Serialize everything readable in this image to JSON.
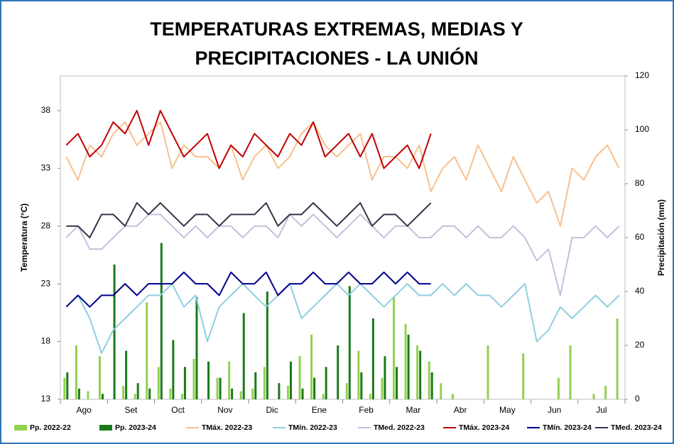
{
  "chart_data": {
    "type": "combo",
    "title": [
      "TEMPERATURAS EXTREMAS, MEDIAS Y",
      "PRECIPITACIONES  - LA UNIÓN"
    ],
    "y_label": "Temperatura (°C)",
    "y2_label": "Precipitación (mm)",
    "categories": [
      null,
      "Ago",
      null,
      null,
      null,
      "Set",
      null,
      null,
      null,
      "Oct",
      null,
      null,
      null,
      "Nov",
      null,
      null,
      null,
      "Dic",
      null,
      null,
      null,
      "Ene",
      null,
      null,
      null,
      "Feb",
      null,
      null,
      null,
      "Mar",
      null,
      null,
      null,
      "Abr",
      null,
      null,
      null,
      "May",
      null,
      null,
      null,
      "Jun",
      null,
      null,
      null,
      "Jul",
      null,
      null
    ],
    "ylim": [
      13,
      41
    ],
    "yticks": [
      13,
      18,
      23,
      28,
      33,
      38
    ],
    "y2lim": [
      0,
      120
    ],
    "y2ticks": [
      0,
      20,
      40,
      60,
      80,
      100,
      120
    ],
    "series": [
      {
        "name": "Pp. 2022-22",
        "kind": "bar",
        "axis": "y2",
        "color": "#92d050",
        "values": [
          8,
          20,
          3,
          16,
          0,
          5,
          2,
          36,
          12,
          4,
          2,
          15,
          0,
          8,
          14,
          3,
          4,
          12,
          0,
          5,
          16,
          24,
          2,
          0,
          6,
          18,
          2,
          8,
          38,
          28,
          20,
          14,
          6,
          2,
          0,
          0,
          20,
          0,
          0,
          17,
          0,
          0,
          8,
          20,
          0,
          2,
          5,
          30
        ]
      },
      {
        "name": "Pp. 2023-24",
        "kind": "bar",
        "axis": "y2",
        "color": "#1a7a1a",
        "values": [
          10,
          4,
          0,
          2,
          50,
          18,
          6,
          4,
          58,
          22,
          12,
          38,
          14,
          8,
          4,
          32,
          10,
          40,
          6,
          14,
          4,
          8,
          12,
          20,
          42,
          10,
          30,
          16,
          12,
          24,
          18,
          10,
          null,
          null,
          null,
          null,
          null,
          null,
          null,
          null,
          null,
          null,
          null,
          null,
          null,
          null,
          null,
          null
        ]
      },
      {
        "name": "TMáx. 2022-23",
        "kind": "line",
        "color": "#f8c08e",
        "values": [
          34,
          32,
          35,
          34,
          36,
          37,
          35,
          36,
          37,
          33,
          35,
          34,
          34,
          33,
          35,
          32,
          34,
          35,
          33,
          34,
          36,
          37,
          35,
          34,
          35,
          36,
          32,
          34,
          34,
          33,
          35,
          31,
          33,
          34,
          32,
          35,
          33,
          31,
          34,
          32,
          30,
          31,
          28,
          33,
          32,
          34,
          35,
          33
        ]
      },
      {
        "name": "TMín. 2022-23",
        "kind": "line",
        "color": "#8fcfe0",
        "values": [
          21,
          22,
          20,
          17,
          19,
          20,
          21,
          22,
          22,
          23,
          21,
          22,
          18,
          21,
          22,
          23,
          22,
          21,
          22,
          23,
          20,
          21,
          22,
          23,
          22,
          23,
          22,
          21,
          22,
          23,
          22,
          22,
          23,
          22,
          23,
          22,
          22,
          21,
          22,
          23,
          18,
          19,
          21,
          20,
          21,
          22,
          21,
          22
        ]
      },
      {
        "name": "TMed. 2022-23",
        "kind": "line",
        "color": "#cbbcdb",
        "values": [
          27,
          28,
          26,
          26,
          27,
          28,
          28,
          29,
          29,
          28,
          27,
          28,
          27,
          28,
          28,
          27,
          28,
          28,
          27,
          29,
          28,
          29,
          28,
          27,
          28,
          29,
          28,
          27,
          28,
          28,
          27,
          27,
          28,
          28,
          27,
          28,
          27,
          27,
          28,
          27,
          25,
          26,
          22,
          27,
          27,
          28,
          27,
          28
        ]
      },
      {
        "name": "TMáx. 2023-24",
        "kind": "line",
        "color": "#c00000",
        "values": [
          35,
          36,
          34,
          35,
          37,
          36,
          38,
          35,
          38,
          36,
          34,
          35,
          36,
          33,
          35,
          34,
          36,
          35,
          34,
          36,
          35,
          37,
          34,
          35,
          36,
          34,
          36,
          33,
          34,
          35,
          33,
          36,
          null,
          null,
          null,
          null,
          null,
          null,
          null,
          null,
          null,
          null,
          null,
          null,
          null,
          null,
          null,
          null
        ]
      },
      {
        "name": "TMín. 2023-24",
        "kind": "line",
        "color": "#00008b",
        "values": [
          21,
          22,
          21,
          22,
          22,
          23,
          22,
          23,
          23,
          23,
          24,
          23,
          23,
          22,
          24,
          23,
          23,
          24,
          22,
          23,
          23,
          24,
          23,
          23,
          24,
          23,
          23,
          24,
          23,
          24,
          23,
          23,
          null,
          null,
          null,
          null,
          null,
          null,
          null,
          null,
          null,
          null,
          null,
          null,
          null,
          null,
          null,
          null
        ]
      },
      {
        "name": "TMed. 2023-24",
        "kind": "line",
        "color": "#3b3249",
        "values": [
          28,
          28,
          27,
          29,
          29,
          28,
          30,
          29,
          30,
          29,
          28,
          29,
          29,
          28,
          29,
          29,
          29,
          30,
          28,
          29,
          29,
          30,
          29,
          28,
          29,
          30,
          28,
          29,
          29,
          28,
          29,
          30,
          null,
          null,
          null,
          null,
          null,
          null,
          null,
          null,
          null,
          null,
          null,
          null,
          null,
          null,
          null,
          null
        ]
      }
    ]
  }
}
